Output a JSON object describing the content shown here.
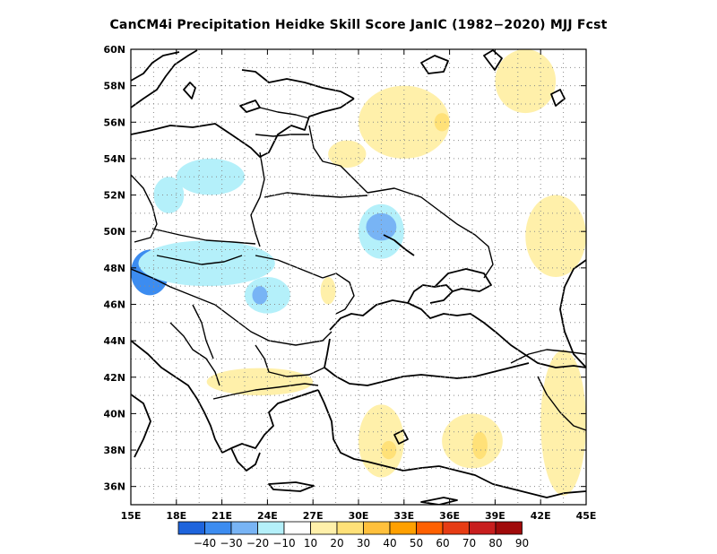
{
  "title": "CanCM4i  Precipitation Heidke Skill Score JanIC (1982−2020) MJJ Fcst",
  "map": {
    "lon_range": [
      15,
      45
    ],
    "lat_range": [
      35,
      60
    ],
    "lon_ticks": [
      "15E",
      "18E",
      "21E",
      "24E",
      "27E",
      "30E",
      "33E",
      "36E",
      "39E",
      "42E",
      "45E"
    ],
    "lat_ticks": [
      "60N",
      "58N",
      "56N",
      "54N",
      "52N",
      "50N",
      "48N",
      "46N",
      "44N",
      "42N",
      "40N",
      "38N",
      "36N"
    ],
    "grid": "dotted"
  },
  "colorbar": {
    "labels": [
      "−40",
      "−30",
      "−20",
      "−10",
      "10",
      "20",
      "30",
      "40",
      "50",
      "60",
      "70",
      "80",
      "90"
    ],
    "colors": [
      "#1e64dc",
      "#3c8cf0",
      "#78b4f5",
      "#b4f0fa",
      "#ffffff",
      "#fff0aa",
      "#ffe178",
      "#ffc03c",
      "#ffa000",
      "#ff6000",
      "#e63c14",
      "#c81e1e",
      "#a00a0a"
    ]
  },
  "chart_data": {
    "type": "heatmap",
    "variable": "Precipitation Heidke Skill Score",
    "regions": [
      {
        "lon": [
          15.0,
          17.5
        ],
        "lat": [
          46.5,
          49.0
        ],
        "value": -30
      },
      {
        "lon": [
          16.5,
          18.5
        ],
        "lat": [
          51.0,
          53.0
        ],
        "value": -10
      },
      {
        "lon": [
          18.0,
          22.5
        ],
        "lat": [
          52.0,
          54.0
        ],
        "value": -10
      },
      {
        "lon": [
          15.5,
          24.5
        ],
        "lat": [
          47.0,
          49.5
        ],
        "value": -10
      },
      {
        "lon": [
          22.5,
          25.5
        ],
        "lat": [
          45.5,
          47.5
        ],
        "value": -10
      },
      {
        "lon": [
          23.0,
          24.0
        ],
        "lat": [
          46.0,
          47.0
        ],
        "value": -20
      },
      {
        "lon": [
          30.0,
          33.0
        ],
        "lat": [
          48.5,
          51.5
        ],
        "value": -10
      },
      {
        "lon": [
          30.5,
          32.5
        ],
        "lat": [
          49.5,
          51.0
        ],
        "value": -20
      },
      {
        "lon": [
          30.0,
          36.0
        ],
        "lat": [
          54.0,
          58.0
        ],
        "value": 10
      },
      {
        "lon": [
          35.0,
          36.0
        ],
        "lat": [
          55.5,
          56.5
        ],
        "value": 20
      },
      {
        "lon": [
          39.0,
          43.0
        ],
        "lat": [
          56.5,
          60.0
        ],
        "value": 10
      },
      {
        "lon": [
          41.0,
          45.0
        ],
        "lat": [
          47.5,
          52.0
        ],
        "value": 10
      },
      {
        "lon": [
          28.0,
          30.5
        ],
        "lat": [
          53.5,
          55.0
        ],
        "value": 10
      },
      {
        "lon": [
          27.5,
          28.5
        ],
        "lat": [
          46.0,
          47.5
        ],
        "value": 10
      },
      {
        "lon": [
          30.0,
          33.0
        ],
        "lat": [
          36.5,
          40.5
        ],
        "value": 10
      },
      {
        "lon": [
          31.5,
          32.5
        ],
        "lat": [
          37.5,
          38.5
        ],
        "value": 20
      },
      {
        "lon": [
          35.5,
          39.5
        ],
        "lat": [
          37.0,
          40.0
        ],
        "value": 10
      },
      {
        "lon": [
          37.5,
          38.5
        ],
        "lat": [
          37.5,
          39.0
        ],
        "value": 20
      },
      {
        "lon": [
          42.0,
          45.0
        ],
        "lat": [
          35.5,
          43.5
        ],
        "value": 10
      },
      {
        "lon": [
          20.0,
          27.0
        ],
        "lat": [
          41.0,
          42.5
        ],
        "value": 10
      }
    ]
  }
}
